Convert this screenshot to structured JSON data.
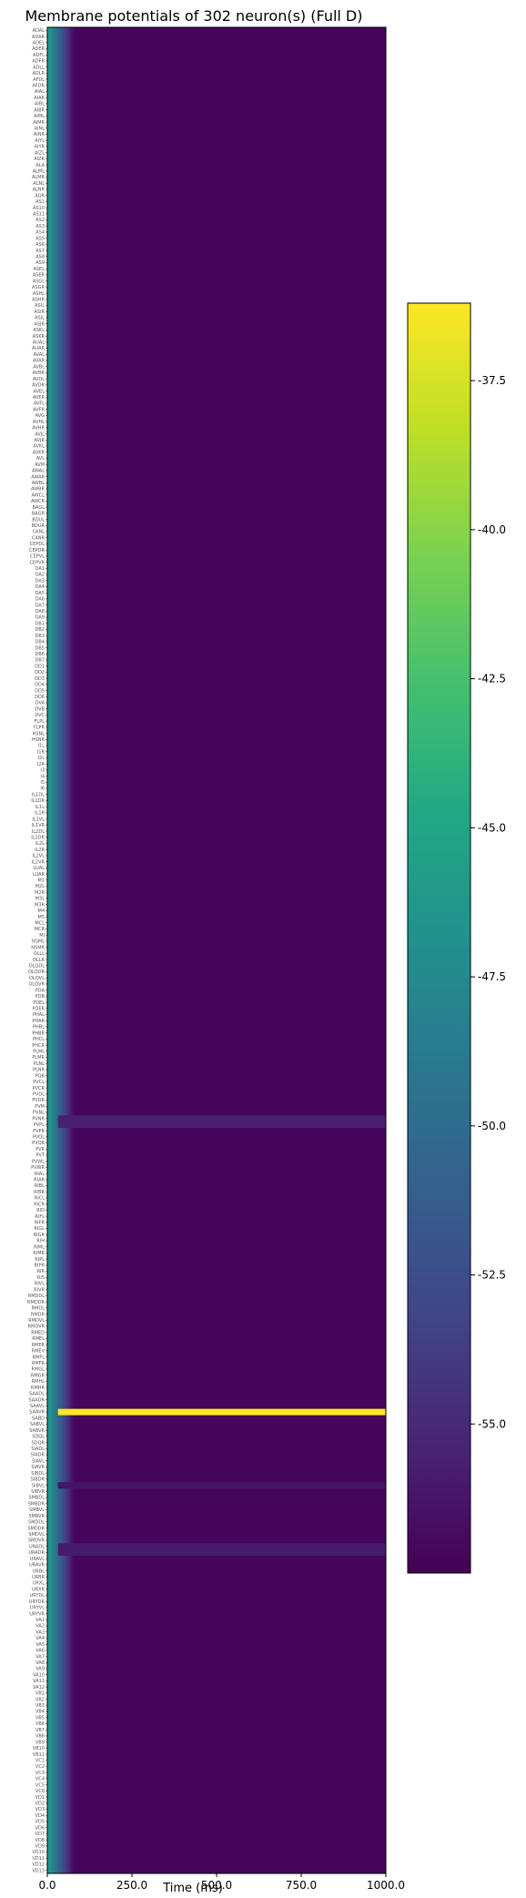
{
  "chart_data": [
    {
      "type": "heatmap",
      "title": "Membrane potentials of 302 neuron(s) (Full D)",
      "xlabel": "Time (ms)",
      "ylabel": "",
      "xlim": [
        0,
        1000
      ],
      "x_ticks": [
        "0.0",
        "250.0",
        "500.0",
        "750.0",
        "1000.0"
      ],
      "x_tick_values": [
        0,
        250,
        500,
        750,
        1000
      ],
      "colormap": "viridis",
      "colorbar": {
        "range": [
          -57.5,
          -36.2
        ],
        "ticks": [
          "-37.5",
          "-40.0",
          "-42.5",
          "-45.0",
          "-47.5",
          "-50.0",
          "-52.5",
          "-55.0"
        ],
        "tick_values": [
          -37.5,
          -40.0,
          -42.5,
          -45.0,
          -47.5,
          -50.0,
          -52.5,
          -55.0
        ]
      },
      "neuron_count": 302,
      "baseline_mV": -57.2,
      "initial_transient": {
        "start_mV": -45.5,
        "duration_ms": 90
      },
      "highlighted_rows": [
        {
          "row": 226,
          "mV": -36.3
        },
        {
          "row": 178,
          "mV": -55.6
        },
        {
          "row": 179,
          "mV": -55.6
        },
        {
          "row": 238,
          "mV": -56.3
        },
        {
          "row": 248,
          "mV": -55.9
        },
        {
          "row": 249,
          "mV": -55.9
        }
      ],
      "neurons": [
        "ADAL",
        "ADAR",
        "ADEL",
        "ADER",
        "ADFL",
        "ADFR",
        "ADLL",
        "ADLR",
        "AFDL",
        "AFDR",
        "AIAL",
        "AIAR",
        "AIBL",
        "AIBR",
        "AIML",
        "AIMR",
        "AINL",
        "AINR",
        "AIYL",
        "AIYR",
        "AIZL",
        "AIZR",
        "ALA",
        "ALML",
        "ALMR",
        "ALNL",
        "ALNR",
        "AQR",
        "AS1",
        "AS10",
        "AS11",
        "AS2",
        "AS3",
        "AS4",
        "AS5",
        "AS6",
        "AS7",
        "AS8",
        "AS9",
        "ASEL",
        "ASER",
        "ASGL",
        "ASGR",
        "ASHL",
        "ASHR",
        "ASIL",
        "ASIR",
        "ASJL",
        "ASJR",
        "ASKL",
        "ASKR",
        "AUAL",
        "AUAR",
        "AVAL",
        "AVAR",
        "AVBL",
        "AVBR",
        "AVDL",
        "AVDR",
        "AVEL",
        "AVER",
        "AVFL",
        "AVFR",
        "AVG",
        "AVHL",
        "AVHR",
        "AVJL",
        "AVJR",
        "AVKL",
        "AVKR",
        "AVL",
        "AVM",
        "AWAL",
        "AWAR",
        "AWBL",
        "AWBR",
        "AWCL",
        "AWCR",
        "BAGL",
        "BAGR",
        "BDUL",
        "BDUR",
        "CANL",
        "CANR",
        "CEPDL",
        "CEPDR",
        "CEPVL",
        "CEPVR",
        "DA1",
        "DA2",
        "DA3",
        "DA4",
        "DA5",
        "DA6",
        "DA7",
        "DA8",
        "DA9",
        "DB1",
        "DB2",
        "DB3",
        "DB4",
        "DB5",
        "DB6",
        "DB7",
        "DD1",
        "DD2",
        "DD3",
        "DD4",
        "DD5",
        "DD6",
        "DVA",
        "DVB",
        "DVC",
        "FLPL",
        "FLPR",
        "HSNL",
        "HSNR",
        "I1L",
        "I1R",
        "I2L",
        "I2R",
        "I3",
        "I4",
        "I5",
        "I6",
        "IL1DL",
        "IL1DR",
        "IL1L",
        "IL1R",
        "IL1VL",
        "IL1VR",
        "IL2DL",
        "IL2DR",
        "IL2L",
        "IL2R",
        "IL2VL",
        "IL2VR",
        "LUAL",
        "LUAR",
        "M1",
        "M2L",
        "M2R",
        "M3L",
        "M3R",
        "M4",
        "M5",
        "MCL",
        "MCR",
        "MI",
        "NSML",
        "NSMR",
        "OLLL",
        "OLLR",
        "OLQDL",
        "OLQDR",
        "OLQVL",
        "OLQVR",
        "PDA",
        "PDB",
        "PDEL",
        "PDER",
        "PHAL",
        "PHAR",
        "PHBL",
        "PHBR",
        "PHCL",
        "PHCR",
        "PLML",
        "PLMR",
        "PLNL",
        "PLNR",
        "PQR",
        "PVCL",
        "PVCR",
        "PVDL",
        "PVDR",
        "PVM",
        "PVNL",
        "PVNR",
        "PVPL",
        "PVPR",
        "PVQL",
        "PVQR",
        "PVR",
        "PVT",
        "PVWL",
        "PVWR",
        "RIAL",
        "RIAR",
        "RIBL",
        "RIBR",
        "RICL",
        "RICR",
        "RID",
        "RIFL",
        "RIFR",
        "RIGL",
        "RIGR",
        "RIH",
        "RIML",
        "RIMR",
        "RIPL",
        "RIPR",
        "RIR",
        "RIS",
        "RIVL",
        "RIVR",
        "RMDDL",
        "RMDDR",
        "RMDL",
        "RMDR",
        "RMDVL",
        "RMDVR",
        "RMED",
        "RMEL",
        "RMER",
        "RMEV",
        "RMFL",
        "RMFR",
        "RMGL",
        "RMGR",
        "RMHL",
        "RMHR",
        "SAADL",
        "SAADR",
        "SAAVL",
        "SAAVR",
        "SABD",
        "SABVL",
        "SABVR",
        "SDQL",
        "SDQR",
        "SIADL",
        "SIADR",
        "SIAVL",
        "SIAVR",
        "SIBDL",
        "SIBDR",
        "SIBVL",
        "SIBVR",
        "SMBDL",
        "SMBDR",
        "SMBVL",
        "SMBVR",
        "SMDDL",
        "SMDDR",
        "SMDVL",
        "SMDVR",
        "URADL",
        "URADR",
        "URAVL",
        "URAVR",
        "URBL",
        "URBR",
        "URXL",
        "URXR",
        "URYDL",
        "URYDR",
        "URYVL",
        "URYVR",
        "VA1",
        "VA2",
        "VA3",
        "VA4",
        "VA5",
        "VA6",
        "VA7",
        "VA8",
        "VA9",
        "VA10",
        "VA11",
        "VA12",
        "VB1",
        "VB2",
        "VB3",
        "VB4",
        "VB5",
        "VB6",
        "VB7",
        "VB8",
        "VB9",
        "VB10",
        "VB11",
        "VC1",
        "VC2",
        "VC3",
        "VC4",
        "VC5",
        "VC6",
        "VD1",
        "VD2",
        "VD3",
        "VD4",
        "VD5",
        "VD6",
        "VD7",
        "VD8",
        "VD9",
        "VD10",
        "VD11",
        "VD12",
        "VD13"
      ]
    }
  ]
}
